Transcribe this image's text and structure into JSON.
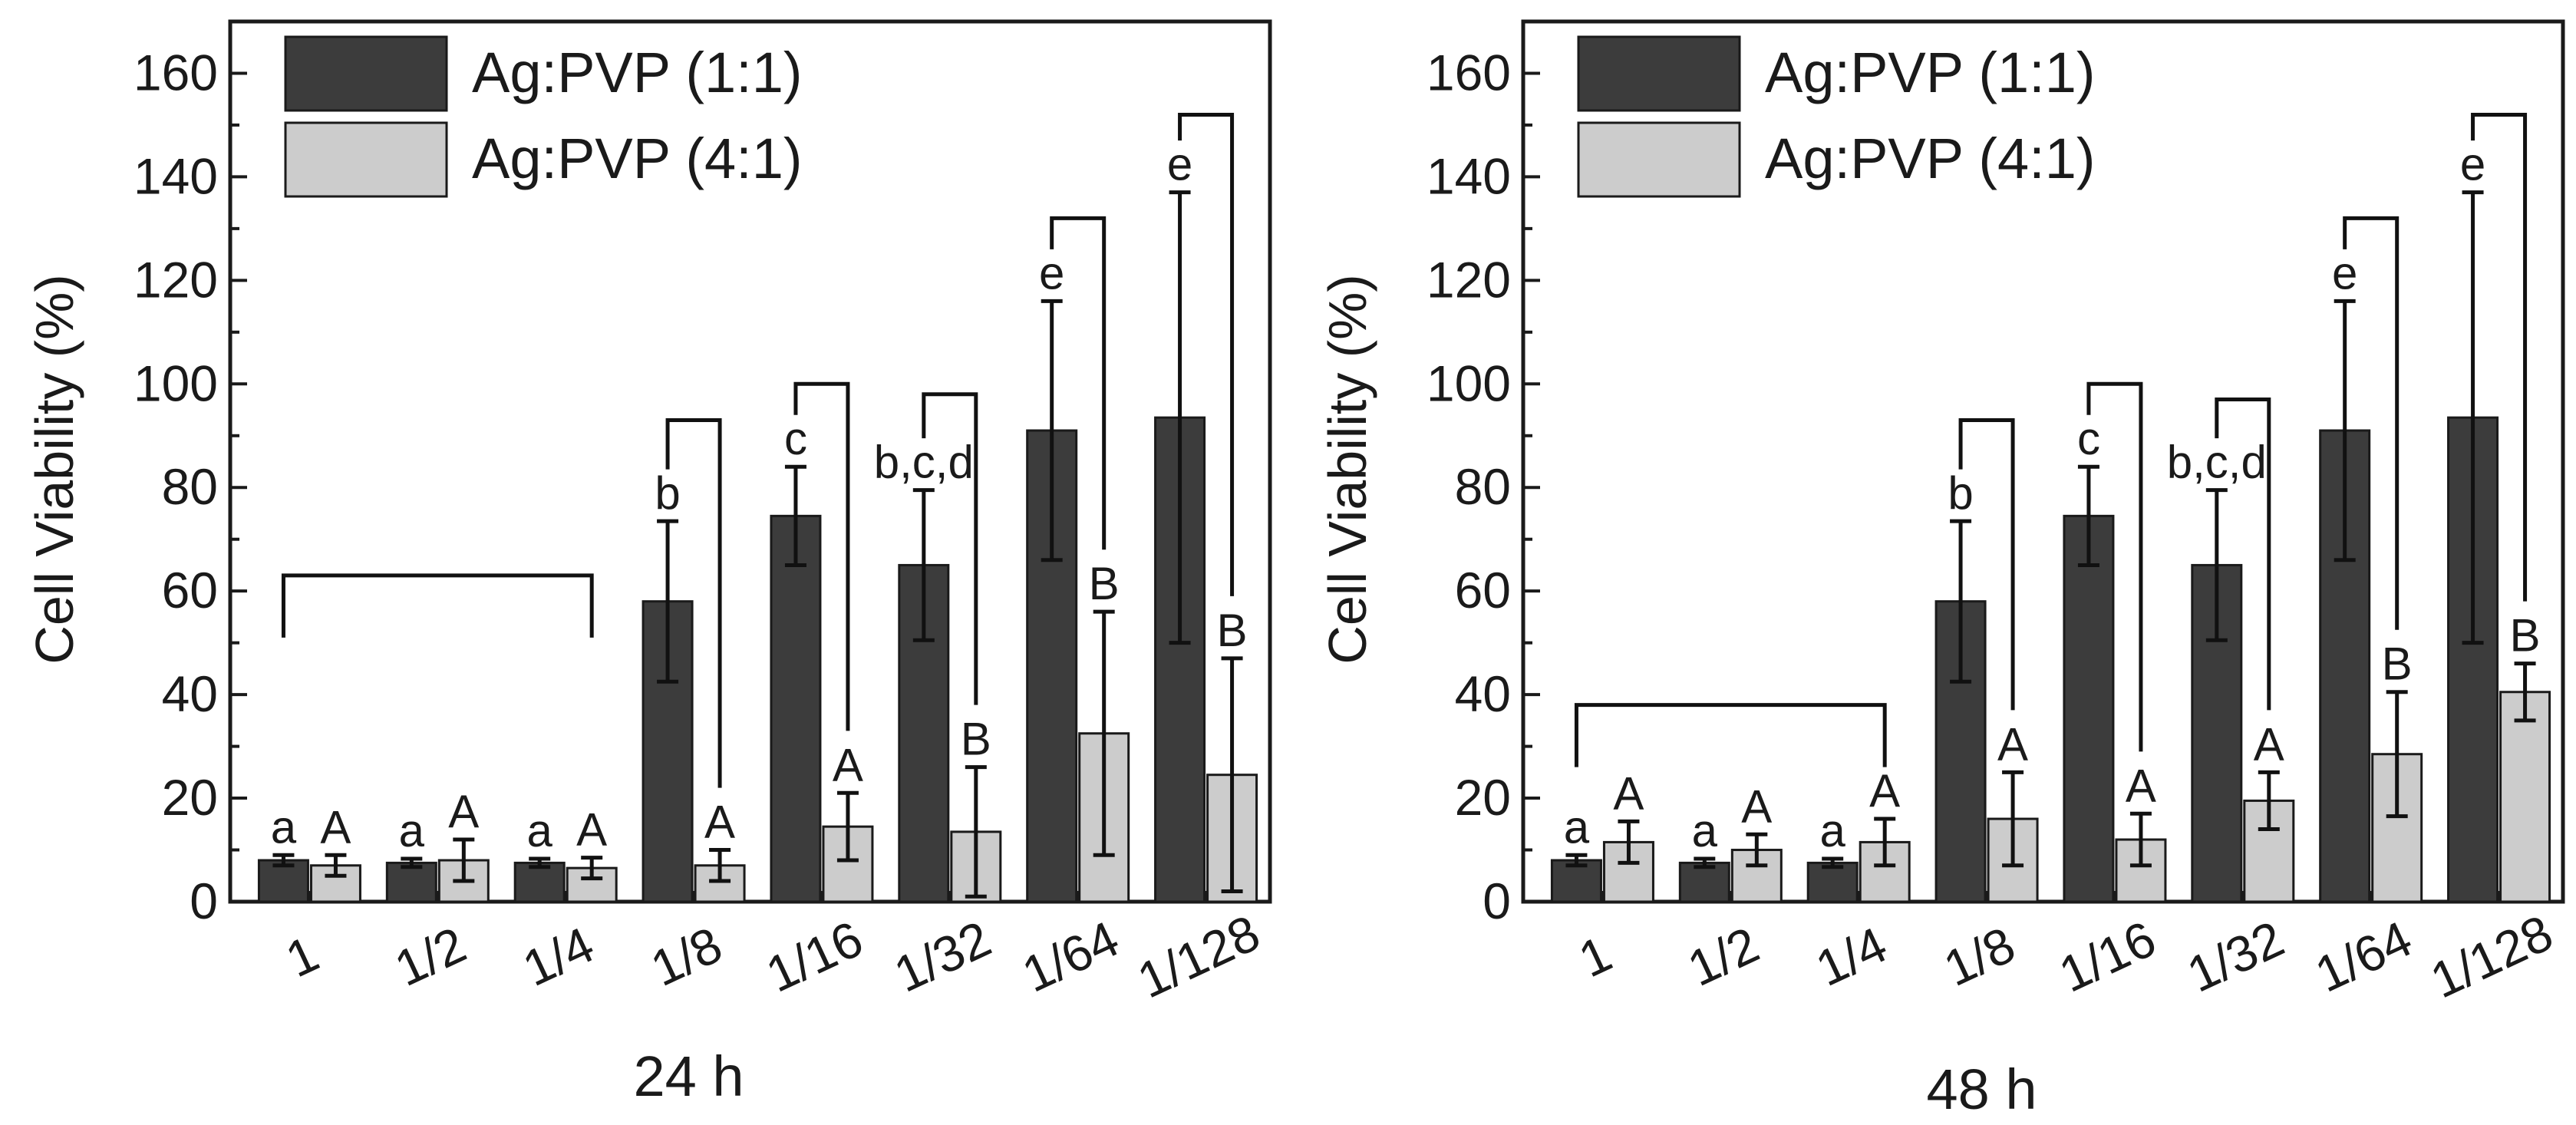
{
  "chart_data": [
    {
      "type": "bar",
      "title": "24 h",
      "xlabel": "24 h",
      "ylabel": "Cell Viability (%)",
      "ylim": [
        0,
        170
      ],
      "yticks": [
        0,
        20,
        40,
        60,
        80,
        100,
        120,
        140,
        160
      ],
      "categories": [
        "1",
        "1/2",
        "1/4",
        "1/8",
        "1/16",
        "1/32",
        "1/64",
        "1/128"
      ],
      "legend_position": "top-left",
      "series": [
        {
          "name": "Ag:PVP (1:1)",
          "color": "#3c3c3c",
          "values": [
            8,
            7.5,
            7.5,
            58,
            74.5,
            65,
            91,
            93.5
          ],
          "errors": [
            1,
            0.8,
            0.8,
            15.5,
            9.5,
            14.5,
            25,
            43.5
          ],
          "letters": [
            "a",
            "a",
            "a",
            "b",
            "c",
            "b,c,d",
            "e",
            "e"
          ]
        },
        {
          "name": "Ag:PVP (4:1)",
          "color": "#cccccc",
          "values": [
            7,
            8,
            6.5,
            7,
            14.5,
            13.5,
            32.5,
            24.5
          ],
          "errors": [
            2,
            4,
            2,
            3,
            6.5,
            12.5,
            23.5,
            22.5
          ],
          "letters": [
            "A",
            "A",
            "A",
            "A",
            "A",
            "B",
            "B",
            "B"
          ]
        }
      ],
      "brackets": [
        {
          "from": 0,
          "to": 2,
          "height": 63
        },
        {
          "from": 3,
          "to": 3,
          "height": 93
        },
        {
          "from": 4,
          "to": 4,
          "height": 100
        },
        {
          "from": 5,
          "to": 5,
          "height": 98
        },
        {
          "from": 6,
          "to": 6,
          "height": 132
        },
        {
          "from": 7,
          "to": 7,
          "height": 152
        }
      ]
    },
    {
      "type": "bar",
      "title": "48 h",
      "xlabel": "48 h",
      "ylabel": "Cell Viability (%)",
      "ylim": [
        0,
        170
      ],
      "yticks": [
        0,
        20,
        40,
        60,
        80,
        100,
        120,
        140,
        160
      ],
      "categories": [
        "1",
        "1/2",
        "1/4",
        "1/8",
        "1/16",
        "1/32",
        "1/64",
        "1/128"
      ],
      "legend_position": "top-left",
      "series": [
        {
          "name": "Ag:PVP (1:1)",
          "color": "#3c3c3c",
          "values": [
            8,
            7.5,
            7.5,
            58,
            74.5,
            65,
            91,
            93.5
          ],
          "errors": [
            1,
            0.8,
            0.8,
            15.5,
            9.5,
            14.5,
            25,
            43.5
          ],
          "letters": [
            "a",
            "a",
            "a",
            "b",
            "c",
            "b,c,d",
            "e",
            "e"
          ]
        },
        {
          "name": "Ag:PVP (4:1)",
          "color": "#cccccc",
          "values": [
            11.5,
            10,
            11.5,
            16,
            12,
            19.5,
            28.5,
            40.5
          ],
          "errors": [
            4,
            3,
            4.5,
            9,
            5,
            5.5,
            12,
            5.5
          ],
          "letters": [
            "A",
            "A",
            "A",
            "A",
            "A",
            "A",
            "B",
            "B"
          ]
        }
      ],
      "brackets": [
        {
          "from": 0,
          "to": 2,
          "height": 38
        },
        {
          "from": 3,
          "to": 3,
          "height": 93
        },
        {
          "from": 4,
          "to": 4,
          "height": 100
        },
        {
          "from": 5,
          "to": 5,
          "height": 97
        },
        {
          "from": 6,
          "to": 6,
          "height": 132
        },
        {
          "from": 7,
          "to": 7,
          "height": 152
        }
      ]
    }
  ]
}
